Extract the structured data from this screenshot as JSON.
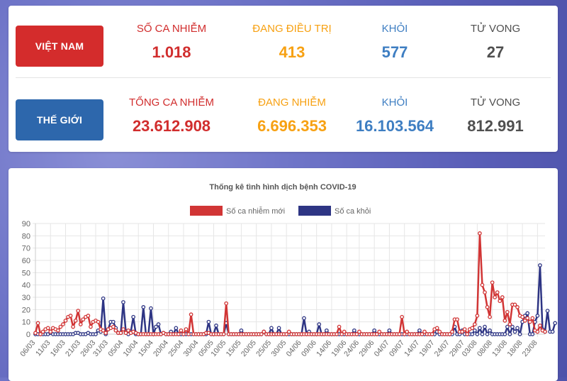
{
  "vietnam": {
    "label": "VIỆT NAM",
    "stats": [
      {
        "label": "SỐ CA NHIỄM",
        "value": "1.018",
        "color": "#d12d2d"
      },
      {
        "label": "ĐANG ĐIỀU TRỊ",
        "value": "413",
        "color": "#f7a113"
      },
      {
        "label": "KHỎI",
        "value": "577",
        "color": "#3e7ec2"
      },
      {
        "label": "TỬ VONG",
        "value": "27",
        "color": "#4f4f4f"
      }
    ]
  },
  "world": {
    "label": "THẾ GIỚI",
    "stats": [
      {
        "label": "TỔNG CA NHIỄM",
        "value": "23.612.908",
        "color": "#d12d2d"
      },
      {
        "label": "ĐANG NHIỄM",
        "value": "6.696.353",
        "color": "#f7a113"
      },
      {
        "label": "KHỎI",
        "value": "16.103.564",
        "color": "#3e7ec2"
      },
      {
        "label": "TỬ VONG",
        "value": "812.991",
        "color": "#4f4f4f"
      }
    ]
  },
  "chart_data": {
    "type": "line",
    "title": "Thống kê tình hình dịch bệnh COVID-19",
    "legend_position": "top",
    "grid": true,
    "ylim": [
      0,
      90
    ],
    "yticks": [
      0,
      10,
      20,
      30,
      40,
      50,
      60,
      70,
      80,
      90
    ],
    "xtick_labels": [
      "06/03",
      "11/03",
      "16/03",
      "21/03",
      "26/03",
      "31/03",
      "05/04",
      "10/04",
      "15/04",
      "20/04",
      "25/04",
      "30/04",
      "05/05",
      "10/05",
      "15/05",
      "20/05",
      "25/05",
      "30/05",
      "04/06",
      "09/06",
      "14/06",
      "19/06",
      "24/06",
      "29/06",
      "04/07",
      "09/07",
      "14/07",
      "19/07",
      "24/07",
      "29/07",
      "03/08",
      "08/08",
      "13/08",
      "18/08",
      "23/08"
    ],
    "series": [
      {
        "name": "Số ca nhiễm mới",
        "color": "#d13535",
        "values": [
          1,
          9,
          0,
          2,
          4,
          5,
          2,
          5,
          4,
          3,
          6,
          8,
          11,
          14,
          15,
          6,
          11,
          19,
          8,
          12,
          14,
          15,
          6,
          10,
          11,
          10,
          4,
          3,
          1,
          4,
          5,
          6,
          3,
          1,
          1,
          4,
          1,
          3,
          1,
          2,
          1,
          0,
          0,
          0,
          0,
          0,
          0,
          0,
          0,
          0,
          0,
          1,
          0,
          0,
          0,
          0,
          0,
          0,
          3,
          0,
          4,
          0,
          16,
          0,
          0,
          0,
          0,
          0,
          1,
          1,
          0,
          0,
          0,
          0,
          0,
          0,
          25,
          0,
          0,
          0,
          0,
          0,
          0,
          0,
          0,
          0,
          0,
          0,
          0,
          0,
          0,
          2,
          0,
          0,
          0,
          0,
          0,
          0,
          0,
          0,
          0,
          2,
          0,
          0,
          0,
          0,
          0,
          0,
          0,
          0,
          0,
          0,
          0,
          0,
          0,
          0,
          0,
          0,
          0,
          0,
          0,
          6,
          0,
          2,
          0,
          0,
          0,
          0,
          0,
          2,
          0,
          0,
          0,
          0,
          0,
          0,
          0,
          2,
          0,
          0,
          0,
          0,
          0,
          0,
          0,
          0,
          14,
          0,
          2,
          0,
          0,
          0,
          0,
          0,
          0,
          2,
          0,
          0,
          0,
          4,
          5,
          2,
          0,
          0,
          0,
          0,
          2,
          12,
          12,
          2,
          2,
          4,
          0,
          4,
          5,
          8,
          15,
          82,
          40,
          34,
          22,
          14,
          42,
          30,
          34,
          27,
          30,
          11,
          18,
          8,
          24,
          24,
          22,
          15,
          14,
          11,
          13,
          10,
          13,
          3,
          2,
          7,
          3,
          2
        ]
      },
      {
        "name": "Số ca khỏi",
        "color": "#2e3584",
        "values": [
          0,
          0,
          0,
          0,
          0,
          0,
          1,
          0,
          0,
          0,
          0,
          0,
          0,
          0,
          0,
          0,
          1,
          1,
          0,
          0,
          0,
          1,
          0,
          0,
          0,
          3,
          2,
          29,
          0,
          4,
          10,
          10,
          5,
          1,
          1,
          26,
          2,
          0,
          2,
          14,
          0,
          0,
          0,
          22,
          0,
          0,
          21,
          0,
          6,
          8,
          0,
          1,
          0,
          0,
          2,
          0,
          5,
          0,
          0,
          0,
          0,
          0,
          0,
          0,
          0,
          0,
          0,
          0,
          0,
          10,
          0,
          0,
          7,
          0,
          0,
          0,
          9,
          0,
          0,
          0,
          0,
          0,
          3,
          0,
          0,
          0,
          0,
          0,
          0,
          0,
          0,
          2,
          0,
          0,
          5,
          0,
          0,
          5,
          0,
          0,
          0,
          0,
          0,
          0,
          0,
          0,
          0,
          13,
          0,
          2,
          0,
          0,
          0,
          8,
          0,
          0,
          3,
          0,
          0,
          0,
          0,
          0,
          0,
          0,
          0,
          0,
          0,
          3,
          0,
          0,
          0,
          0,
          0,
          0,
          0,
          3,
          0,
          0,
          0,
          0,
          0,
          3,
          0,
          0,
          0,
          0,
          0,
          0,
          0,
          0,
          0,
          0,
          0,
          3,
          0,
          0,
          0,
          0,
          0,
          0,
          2,
          0,
          0,
          0,
          0,
          0,
          0,
          6,
          0,
          0,
          3,
          0,
          0,
          0,
          0,
          3,
          0,
          5,
          0,
          6,
          0,
          3,
          0,
          0,
          0,
          0,
          0,
          0,
          6,
          0,
          6,
          2,
          5,
          0,
          10,
          15,
          17,
          0,
          0,
          10,
          15,
          56,
          4,
          2,
          19,
          2,
          2,
          9
        ]
      }
    ]
  }
}
